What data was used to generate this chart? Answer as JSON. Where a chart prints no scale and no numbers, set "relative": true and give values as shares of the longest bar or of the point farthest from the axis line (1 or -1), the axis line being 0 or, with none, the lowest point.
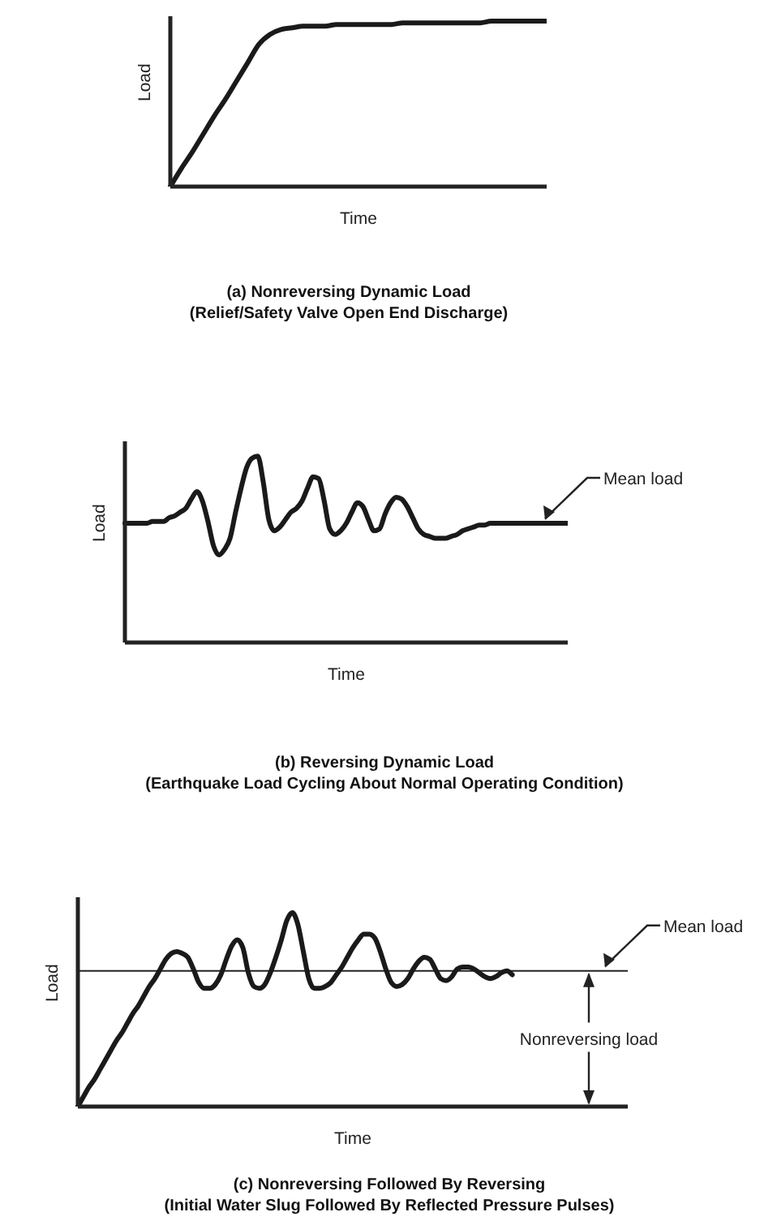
{
  "chart_data": [
    {
      "type": "line",
      "title": "(a) Nonreversing Dynamic Load",
      "subtitle": "(Relief/Safety Valve Open End Discharge)",
      "xlabel": "Time",
      "ylabel": "Load",
      "relative": true,
      "categories": [
        null,
        null,
        null,
        null,
        null,
        null,
        null,
        null,
        null,
        null,
        null,
        null,
        null,
        null,
        null,
        null,
        null,
        null,
        null,
        null,
        null,
        null,
        null,
        null,
        null,
        null,
        null,
        null,
        null,
        null,
        null,
        null,
        null,
        null,
        null
      ],
      "series": [
        {
          "color": "#1a1a1a",
          "values": [
            0,
            0.11,
            0.21,
            0.32,
            0.43,
            0.53,
            0.64,
            0.75,
            0.86,
            0.92,
            0.95,
            0.96,
            0.97,
            0.97,
            0.97,
            0.98,
            0.98,
            0.98,
            0.98,
            0.98,
            0.98,
            0.99,
            0.99,
            0.99,
            0.99,
            0.99,
            0.99,
            0.99,
            0.99,
            1,
            1,
            1,
            1,
            1,
            1
          ]
        }
      ]
    },
    {
      "type": "line",
      "title": "(b) Reversing Dynamic Load",
      "subtitle": "(Earthquake Load Cycling About Normal Operating Condition)",
      "xlabel": "Time",
      "ylabel": "Load",
      "relative": true,
      "annotations": [
        "Mean load"
      ],
      "categories": [
        null,
        null,
        null,
        null,
        null,
        null,
        null,
        null,
        null,
        null,
        null,
        null,
        null,
        null,
        null,
        null,
        null,
        null,
        null,
        null,
        null,
        null,
        null,
        null,
        null,
        null,
        null,
        null,
        null,
        null,
        null,
        null,
        null,
        null,
        null,
        null,
        null,
        null,
        null,
        null,
        null,
        null,
        null,
        null,
        null,
        null,
        null,
        null,
        null,
        null,
        null,
        null,
        null,
        null,
        null,
        null,
        null,
        null,
        null,
        null,
        null,
        null,
        null,
        null,
        null,
        null,
        null,
        null,
        null,
        null,
        null,
        null,
        null,
        null,
        null,
        null,
        null,
        null,
        null,
        null,
        null
      ],
      "series": [
        {
          "color": "#1a1a1a",
          "values": [
            0.64,
            0.64,
            0.64,
            0.64,
            0.64,
            0.65,
            0.65,
            0.65,
            0.67,
            0.68,
            0.7,
            0.72,
            0.77,
            0.81,
            0.76,
            0.65,
            0.52,
            0.47,
            0.5,
            0.56,
            0.7,
            0.83,
            0.94,
            0.99,
            1,
            0.86,
            0.66,
            0.6,
            0.62,
            0.66,
            0.7,
            0.72,
            0.76,
            0.83,
            0.89,
            0.88,
            0.76,
            0.61,
            0.58,
            0.6,
            0.64,
            0.7,
            0.75,
            0.73,
            0.66,
            0.6,
            0.61,
            0.69,
            0.75,
            0.78,
            0.77,
            0.73,
            0.67,
            0.61,
            0.58,
            0.57,
            0.56,
            0.56,
            0.56,
            0.57,
            0.58,
            0.6,
            0.61,
            0.62,
            0.63,
            0.63,
            0.64,
            0.64,
            0.64,
            0.64,
            0.64,
            0.64,
            0.64,
            0.64,
            0.64,
            0.64,
            0.64,
            0.64,
            0.64,
            0.64,
            0.64
          ]
        }
      ]
    },
    {
      "type": "line",
      "title": "(c) Nonreversing Followed By Reversing",
      "subtitle": "(Initial Water Slug Followed By Reflected Pressure Pulses)",
      "xlabel": "Time",
      "ylabel": "Load",
      "relative": true,
      "annotations": [
        "Nonreversing load"
      ],
      "ref_lines": [
        {
          "axis": "y",
          "value": 0.7,
          "label": "Mean load"
        }
      ],
      "categories": [
        null,
        null,
        null,
        null,
        null,
        null,
        null,
        null,
        null,
        null,
        null,
        null,
        null,
        null,
        null,
        null,
        null,
        null,
        null,
        null,
        null,
        null,
        null,
        null,
        null,
        null,
        null,
        null,
        null,
        null,
        null,
        null,
        null,
        null,
        null,
        null,
        null,
        null,
        null,
        null,
        null,
        null,
        null,
        null,
        null,
        null,
        null,
        null,
        null,
        null,
        null,
        null,
        null,
        null,
        null,
        null,
        null,
        null,
        null,
        null,
        null,
        null,
        null,
        null,
        null,
        null,
        null,
        null,
        null,
        null,
        null,
        null,
        null,
        null,
        null,
        null,
        null,
        null,
        null,
        null,
        null,
        null,
        null,
        null,
        null,
        null,
        null,
        null,
        null,
        null,
        null,
        null,
        null,
        null,
        null,
        null,
        null,
        null,
        null,
        null,
        null
      ],
      "series": [
        {
          "color": "#1a1a1a",
          "values": [
            0,
            0.05,
            0.1,
            0.14,
            0.19,
            0.24,
            0.29,
            0.34,
            0.38,
            0.43,
            0.48,
            0.52,
            0.57,
            0.62,
            0.66,
            0.71,
            0.76,
            0.79,
            0.8,
            0.79,
            0.77,
            0.71,
            0.64,
            0.61,
            0.61,
            0.63,
            0.68,
            0.76,
            0.83,
            0.86,
            0.82,
            0.69,
            0.62,
            0.61,
            0.63,
            0.69,
            0.77,
            0.86,
            0.96,
            1,
            0.94,
            0.8,
            0.66,
            0.61,
            0.61,
            0.62,
            0.64,
            0.68,
            0.72,
            0.77,
            0.82,
            0.86,
            0.89,
            0.89,
            0.87,
            0.8,
            0.71,
            0.64,
            0.62,
            0.63,
            0.66,
            0.71,
            0.75,
            0.77,
            0.76,
            0.71,
            0.66,
            0.65,
            0.67,
            0.71,
            0.72,
            0.72,
            0.71,
            0.69,
            0.67,
            0.66,
            0.67,
            0.69,
            0.7,
            0.68,
            null,
            null,
            null,
            null,
            null,
            null,
            null,
            null,
            null,
            null,
            null,
            null,
            null,
            null,
            null,
            null,
            null,
            null,
            null,
            null,
            null
          ]
        }
      ]
    }
  ]
}
